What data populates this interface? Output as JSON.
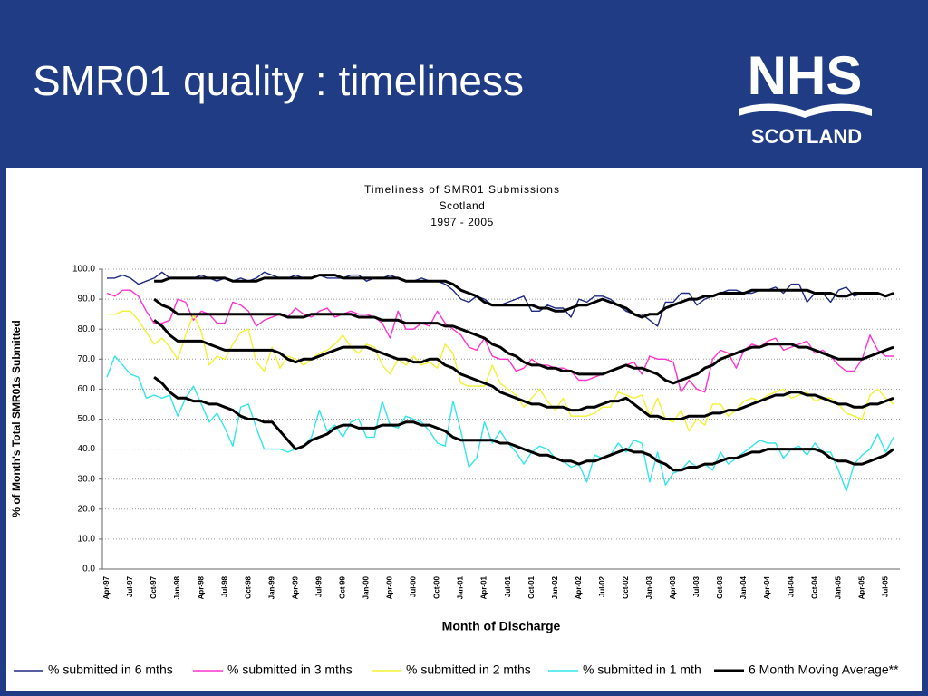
{
  "header": {
    "title": "SMR01 quality : timeliness",
    "logo_top": "NHS",
    "logo_bottom": "SCOTLAND"
  },
  "chart_data": {
    "type": "line",
    "title": [
      "Timeliness of SMR01 Submissions",
      "Scotland",
      "1997 - 2005"
    ],
    "xlabel": "Month of Discharge",
    "ylabel": "% of Month's Total SMR01s Submitted",
    "ylim": [
      0,
      100
    ],
    "yticks": [
      {
        "value": 0,
        "label": "0.0"
      },
      {
        "value": 10,
        "label": "10.0"
      },
      {
        "value": 20,
        "label": "20.0"
      },
      {
        "value": 30,
        "label": "30.0"
      },
      {
        "value": 40,
        "label": "40.0"
      },
      {
        "value": 50,
        "label": "50.0"
      },
      {
        "value": 60,
        "label": "60.0"
      },
      {
        "value": 70,
        "label": "70.0"
      },
      {
        "value": 80,
        "label": "80.0"
      },
      {
        "value": 90,
        "label": "90.0"
      },
      {
        "value": 100,
        "label": "100.0"
      }
    ],
    "grid": true,
    "categories": [
      "Apr-97",
      null,
      null,
      "Jul-97",
      null,
      null,
      "Oct-97",
      null,
      null,
      "Jan-98",
      null,
      null,
      "Apr-98",
      null,
      null,
      "Jul-98",
      null,
      null,
      "Oct-98",
      null,
      null,
      "Jan-99",
      null,
      null,
      "Apr-99",
      null,
      null,
      "Jul-99",
      null,
      null,
      "Oct-99",
      null,
      null,
      "Jan-00",
      null,
      null,
      "Apr-00",
      null,
      null,
      "Jul-00",
      null,
      null,
      "Oct-00",
      null,
      null,
      "Jan-01",
      null,
      null,
      "Apr-01",
      null,
      null,
      "Jul-01",
      null,
      null,
      "Oct-01",
      null,
      null,
      "Jan-02",
      null,
      null,
      "Apr-02",
      null,
      null,
      "Jul-02",
      null,
      null,
      "Oct-02",
      null,
      null,
      "Jan-03",
      null,
      null,
      "Apr-03",
      null,
      null,
      "Jul-03",
      null,
      null,
      "Oct-03",
      null,
      null,
      "Jan-04",
      null,
      null,
      "Apr-04",
      null,
      null,
      "Jul-04",
      null,
      null,
      "Oct-04",
      null,
      null,
      "Jan-05",
      null,
      null,
      "Apr-05",
      null,
      null,
      "Jul-05",
      null
    ],
    "series": [
      {
        "name": "% submitted in 6 mths",
        "color": "#1f2a80",
        "values": [
          97,
          97,
          98,
          97,
          95,
          96,
          97,
          99,
          97,
          97,
          97,
          97,
          98,
          97,
          96,
          97,
          96,
          97,
          96,
          97,
          99,
          98,
          97,
          97,
          98,
          97,
          97,
          98,
          97,
          97,
          97,
          98,
          98,
          96,
          97,
          97,
          98,
          97,
          96,
          96,
          97,
          96,
          96,
          95,
          93,
          90,
          89,
          91,
          90,
          88,
          88,
          89,
          90,
          91,
          86,
          86,
          88,
          87,
          87,
          84,
          90,
          89,
          91,
          91,
          90,
          88,
          86,
          85,
          85,
          83,
          81,
          89,
          89,
          92,
          92,
          88,
          90,
          91,
          92,
          93,
          93,
          92,
          92,
          93,
          93,
          94,
          92,
          95,
          95,
          89,
          92,
          92,
          89,
          93,
          94,
          91,
          92,
          92,
          92,
          91,
          92
        ]
      },
      {
        "name": "% submitted in 3 mths",
        "color": "#ff33cc",
        "values": [
          92,
          91,
          93,
          93,
          91,
          86,
          82,
          82,
          83,
          90,
          89,
          83,
          86,
          85,
          82,
          82,
          89,
          88,
          86,
          81,
          83,
          84,
          85,
          84,
          87,
          85,
          84,
          86,
          87,
          84,
          85,
          86,
          85,
          85,
          84,
          82,
          77,
          86,
          80,
          80,
          82,
          81,
          86,
          82,
          80,
          78,
          74,
          73,
          77,
          71,
          70,
          70,
          66,
          67,
          70,
          68,
          68,
          67,
          67,
          66,
          63,
          63,
          64,
          65,
          66,
          67,
          68,
          69,
          65,
          71,
          70,
          70,
          69,
          59,
          63,
          60,
          59,
          70,
          73,
          72,
          67,
          73,
          75,
          74,
          76,
          77,
          73,
          74,
          75,
          76,
          72,
          73,
          71,
          68,
          66,
          66,
          70,
          78,
          73,
          71,
          71
        ]
      },
      {
        "name": "% submitted in 2 mths",
        "color": "#f2f233",
        "values": [
          85,
          85,
          86,
          86,
          83,
          79,
          75,
          77,
          74,
          70,
          78,
          85,
          79,
          68,
          71,
          70,
          75,
          79,
          80,
          69,
          66,
          74,
          67,
          71,
          70,
          68,
          70,
          72,
          73,
          75,
          78,
          74,
          72,
          75,
          74,
          68,
          65,
          70,
          68,
          71,
          68,
          69,
          67,
          75,
          72,
          62,
          61,
          61,
          61,
          68,
          62,
          60,
          58,
          54,
          57,
          60,
          56,
          53,
          57,
          51,
          51,
          51,
          52,
          54,
          54,
          59,
          58,
          57,
          58,
          51,
          57,
          50,
          49,
          53,
          46,
          50,
          48,
          55,
          55,
          51,
          53,
          56,
          57,
          56,
          58,
          59,
          60,
          57,
          58,
          59,
          56,
          57,
          57,
          55,
          52,
          51,
          50,
          58,
          60,
          57,
          55
        ]
      },
      {
        "name": "% submitted in 1 mth",
        "color": "#33e6ea",
        "values": [
          64,
          71,
          68,
          65,
          64,
          57,
          58,
          57,
          58,
          51,
          57,
          61,
          55,
          49,
          52,
          47,
          41,
          54,
          55,
          47,
          40,
          40,
          40,
          39,
          40,
          41,
          44,
          53,
          46,
          48,
          44,
          49,
          50,
          44,
          44,
          56,
          48,
          47,
          51,
          50,
          49,
          46,
          42,
          41,
          56,
          46,
          34,
          37,
          49,
          42,
          46,
          42,
          39,
          35,
          39,
          41,
          40,
          37,
          36,
          34,
          35,
          29,
          38,
          37,
          38,
          42,
          39,
          43,
          42,
          29,
          39,
          28,
          32,
          33,
          36,
          34,
          35,
          33,
          39,
          35,
          37,
          39,
          41,
          43,
          42,
          42,
          37,
          40,
          41,
          38,
          42,
          39,
          39,
          33,
          26,
          35,
          38,
          40,
          45,
          39,
          44
        ]
      }
    ],
    "moving_average": {
      "name": "6 Month Moving Average**",
      "color": "#000000",
      "values": [
        [
          null,
          null,
          null,
          null,
          null,
          null,
          96,
          96,
          97,
          97,
          97,
          97,
          97,
          97,
          97,
          97,
          96,
          96,
          96,
          96,
          97,
          97,
          97,
          97,
          97,
          97,
          97,
          98,
          98,
          98,
          97,
          97,
          97,
          97,
          97,
          97,
          97,
          97,
          96,
          96,
          96,
          96,
          96,
          96,
          95,
          93,
          92,
          91,
          89,
          88,
          88,
          88,
          88,
          88,
          88,
          87,
          87,
          86,
          86,
          87,
          88,
          88,
          89,
          90,
          89,
          88,
          87,
          85,
          84,
          85,
          85,
          87,
          88,
          89,
          90,
          90,
          91,
          91,
          92,
          92,
          92,
          92,
          93,
          93,
          93,
          93,
          93,
          93,
          93,
          93,
          92,
          92,
          92,
          91,
          91,
          92,
          92,
          92,
          92,
          91,
          92
        ],
        [
          null,
          null,
          null,
          null,
          null,
          null,
          90,
          88,
          87,
          85,
          85,
          85,
          85,
          85,
          85,
          85,
          85,
          85,
          85,
          85,
          85,
          85,
          85,
          84,
          84,
          84,
          85,
          85,
          85,
          85,
          85,
          85,
          84,
          84,
          84,
          83,
          83,
          83,
          82,
          82,
          82,
          82,
          82,
          81,
          81,
          80,
          79,
          78,
          77,
          75,
          74,
          72,
          71,
          69,
          68,
          68,
          67,
          67,
          66,
          66,
          65,
          65,
          65,
          65,
          66,
          67,
          68,
          67,
          67,
          66,
          65,
          63,
          62,
          63,
          64,
          65,
          67,
          68,
          70,
          71,
          72,
          73,
          74,
          74,
          75,
          75,
          75,
          75,
          74,
          74,
          73,
          72,
          71,
          70,
          70,
          70,
          70,
          71,
          72,
          73,
          74
        ],
        [
          null,
          null,
          null,
          null,
          null,
          null,
          83,
          81,
          78,
          76,
          76,
          76,
          76,
          75,
          74,
          73,
          73,
          73,
          73,
          73,
          73,
          73,
          72,
          70,
          69,
          70,
          70,
          71,
          72,
          73,
          74,
          74,
          74,
          74,
          73,
          72,
          71,
          70,
          70,
          69,
          69,
          70,
          70,
          68,
          67,
          65,
          64,
          63,
          62,
          61,
          59,
          58,
          57,
          56,
          55,
          55,
          54,
          54,
          54,
          53,
          53,
          54,
          54,
          55,
          56,
          56,
          57,
          55,
          53,
          51,
          51,
          50,
          50,
          50,
          51,
          51,
          51,
          52,
          52,
          53,
          53,
          54,
          55,
          56,
          57,
          58,
          58,
          59,
          59,
          58,
          58,
          57,
          56,
          55,
          55,
          54,
          54,
          55,
          55,
          56,
          57
        ],
        [
          null,
          null,
          null,
          null,
          null,
          null,
          64,
          62,
          59,
          57,
          57,
          56,
          56,
          55,
          55,
          54,
          53,
          51,
          50,
          50,
          49,
          49,
          46,
          43,
          40,
          41,
          43,
          44,
          45,
          47,
          48,
          48,
          47,
          47,
          47,
          48,
          48,
          48,
          49,
          49,
          48,
          48,
          47,
          46,
          44,
          43,
          43,
          43,
          43,
          43,
          42,
          42,
          41,
          40,
          39,
          38,
          38,
          37,
          36,
          36,
          35,
          36,
          36,
          37,
          38,
          39,
          40,
          39,
          39,
          38,
          36,
          35,
          33,
          33,
          34,
          34,
          35,
          35,
          36,
          37,
          37,
          38,
          39,
          39,
          40,
          40,
          40,
          40,
          40,
          40,
          40,
          39,
          37,
          36,
          36,
          35,
          35,
          36,
          37,
          38,
          40
        ]
      ]
    }
  }
}
